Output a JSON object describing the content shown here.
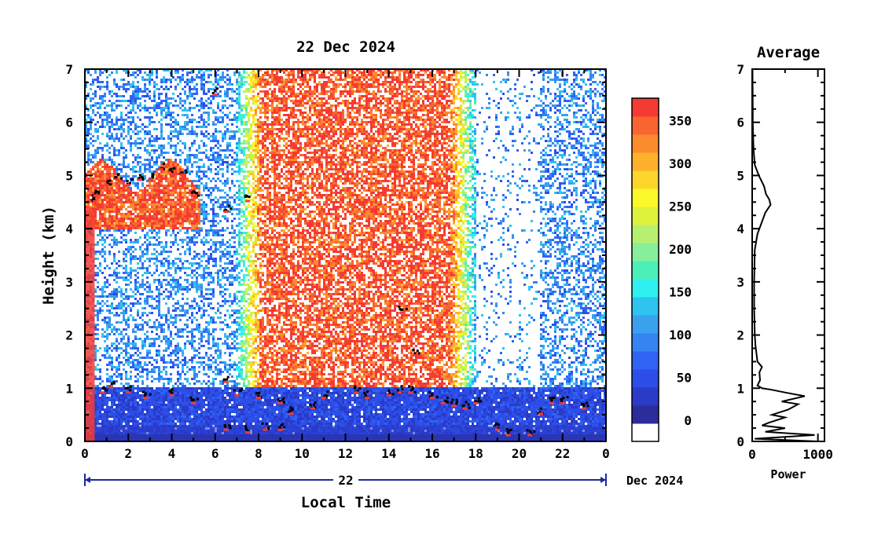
{
  "chart_data": [
    {
      "type": "heatmap",
      "title": "22 Dec 2024",
      "xlabel": "Local Time",
      "ylabel": "Height (km)",
      "xlim": [
        0,
        24
      ],
      "ylim": [
        0,
        7
      ],
      "x_ticks": [
        "0",
        "2",
        "4",
        "6",
        "8",
        "10",
        "12",
        "14",
        "16",
        "18",
        "20",
        "22",
        "0"
      ],
      "y_ticks": [
        "0",
        "1",
        "2",
        "3",
        "4",
        "5",
        "6",
        "7"
      ],
      "date_bar_label": "22",
      "date_bar_suffix": "Dec 2024",
      "colorbar": {
        "ticks": [
          "0",
          "50",
          "100",
          "150",
          "200",
          "250",
          "300",
          "350"
        ],
        "range": [
          0,
          380
        ],
        "colors": [
          "#ffffff",
          "#2b2d9a",
          "#2a3bc8",
          "#2c4de8",
          "#2f63f4",
          "#3584f2",
          "#3aa1ee",
          "#2fc3f1",
          "#2ef0ef",
          "#4bf0b9",
          "#86ef9c",
          "#b7f070",
          "#def23b",
          "#fdf82a",
          "#fdd62b",
          "#fdb12d",
          "#fc8c2e",
          "#f96431",
          "#f43b33"
        ]
      },
      "features": {
        "cloud_base_points": [
          [
            0.2,
            4.6
          ],
          [
            0.5,
            4.7
          ],
          [
            1.0,
            4.9
          ],
          [
            1.5,
            5.0
          ],
          [
            2.0,
            4.9
          ],
          [
            2.5,
            5.0
          ],
          [
            3.0,
            5.0
          ],
          [
            3.5,
            5.2
          ],
          [
            4.0,
            5.1
          ],
          [
            4.5,
            5.1
          ],
          [
            5.0,
            4.7
          ],
          [
            6.0,
            6.6
          ],
          [
            6.5,
            4.4
          ],
          [
            7.5,
            4.6
          ],
          [
            0.8,
            1.0
          ],
          [
            1.2,
            1.1
          ],
          [
            2.0,
            1.0
          ],
          [
            2.8,
            0.9
          ],
          [
            4.0,
            0.95
          ],
          [
            5.0,
            0.8
          ],
          [
            6.5,
            1.2
          ],
          [
            7.0,
            0.95
          ],
          [
            8.0,
            0.9
          ],
          [
            9.0,
            0.8
          ],
          [
            9.5,
            0.6
          ],
          [
            10.5,
            0.7
          ],
          [
            11.0,
            0.9
          ],
          [
            12.5,
            1.0
          ],
          [
            13.0,
            0.9
          ],
          [
            14.0,
            0.95
          ],
          [
            14.5,
            1.0
          ],
          [
            15.0,
            1.0
          ],
          [
            16.0,
            0.9
          ],
          [
            16.5,
            0.8
          ],
          [
            17.0,
            0.75
          ],
          [
            17.5,
            0.7
          ],
          [
            18.0,
            0.8
          ],
          [
            19.0,
            0.3
          ],
          [
            19.5,
            0.2
          ],
          [
            20.5,
            0.2
          ],
          [
            21.0,
            0.6
          ],
          [
            21.5,
            0.8
          ],
          [
            22.0,
            0.8
          ],
          [
            23.0,
            0.7
          ],
          [
            6.5,
            0.3
          ],
          [
            7.5,
            0.25
          ],
          [
            8.3,
            0.3
          ],
          [
            9.0,
            0.3
          ],
          [
            14.6,
            2.5
          ],
          [
            15.2,
            1.7
          ]
        ]
      }
    },
    {
      "type": "line",
      "title": "Average",
      "xlabel": "Power",
      "ylabel": "",
      "xlim": [
        0,
        1100
      ],
      "ylim": [
        0,
        7
      ],
      "x_ticks": [
        "0",
        "1000"
      ],
      "y_ticks": [
        "0",
        "1",
        "2",
        "3",
        "4",
        "5",
        "6",
        "7"
      ],
      "series": [
        {
          "values_xy": [
            [
              1000,
              0.0
            ],
            [
              40,
              0.05
            ],
            [
              950,
              0.12
            ],
            [
              200,
              0.18
            ],
            [
              500,
              0.25
            ],
            [
              150,
              0.3
            ],
            [
              250,
              0.35
            ],
            [
              500,
              0.45
            ],
            [
              300,
              0.5
            ],
            [
              550,
              0.6
            ],
            [
              700,
              0.7
            ],
            [
              450,
              0.75
            ],
            [
              800,
              0.85
            ],
            [
              500,
              0.92
            ],
            [
              300,
              0.97
            ],
            [
              150,
              1.0
            ],
            [
              80,
              1.05
            ],
            [
              120,
              1.15
            ],
            [
              110,
              1.3
            ],
            [
              150,
              1.4
            ],
            [
              80,
              1.5
            ],
            [
              70,
              1.6
            ],
            [
              50,
              1.8
            ],
            [
              40,
              2.0
            ],
            [
              30,
              2.5
            ],
            [
              30,
              3.0
            ],
            [
              35,
              3.3
            ],
            [
              40,
              3.6
            ],
            [
              80,
              3.9
            ],
            [
              140,
              4.1
            ],
            [
              200,
              4.3
            ],
            [
              280,
              4.45
            ],
            [
              260,
              4.55
            ],
            [
              210,
              4.65
            ],
            [
              180,
              4.8
            ],
            [
              100,
              5.0
            ],
            [
              40,
              5.2
            ],
            [
              20,
              5.5
            ],
            [
              10,
              6.0
            ],
            [
              8,
              6.5
            ],
            [
              5,
              7.0
            ]
          ]
        }
      ]
    }
  ]
}
